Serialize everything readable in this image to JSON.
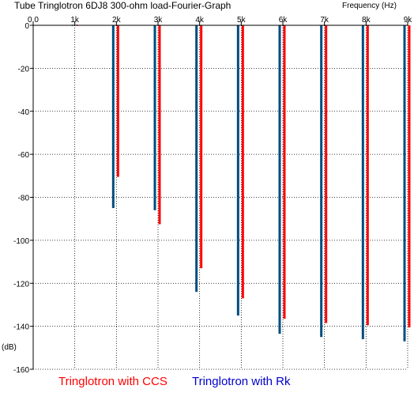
{
  "chart_data": {
    "type": "bar",
    "title": "Tube Tringlotron 6DJ8 300-ohm load-Fourier-Graph",
    "xlabel": "Frequency   (Hz)",
    "ylabel": "(dB)",
    "x_ticks": [
      "0.0",
      "1k",
      "2k",
      "3k",
      "4k",
      "5k",
      "6k",
      "7k",
      "8k",
      "9k"
    ],
    "y_ticks": [
      "0",
      "-20",
      "-40",
      "-60",
      "-80",
      "-100",
      "-120",
      "-140",
      "-160"
    ],
    "xlim": [
      0,
      9000
    ],
    "ylim": [
      -160,
      0
    ],
    "grid": true,
    "legend_position": "bottom",
    "x": [
      1000,
      2000,
      3000,
      4000,
      5000,
      6000,
      7000,
      8000,
      9000
    ],
    "series": [
      {
        "name": "Tringlotron with CCS",
        "color": "#ff0000",
        "values": [
          0,
          -70.5,
          -92.5,
          -113,
          -127,
          -136.5,
          -138.5,
          -139.5,
          -140.5
        ]
      },
      {
        "name": "Tringlotron with Rk",
        "color": "#004c7f",
        "values": [
          0,
          -85,
          -86,
          -124,
          -135,
          -143.5,
          -145,
          -146,
          -147
        ]
      }
    ]
  }
}
